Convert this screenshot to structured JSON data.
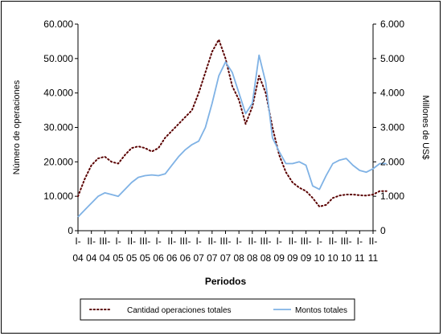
{
  "chart_data": {
    "type": "line",
    "xlabel": "Periodos",
    "ylabel_left": "Número de operaciones",
    "ylabel_right": "Millones de US$",
    "ylim_left": [
      0,
      60000
    ],
    "ylim_right": [
      0,
      6000
    ],
    "yticks_left": [
      "0",
      "10.000",
      "20.000",
      "30.000",
      "40.000",
      "50.000",
      "60.000"
    ],
    "yticks_right": [
      "0",
      "1.000",
      "2.000",
      "3.000",
      "4.000",
      "5.000",
      "6.000"
    ],
    "x_ticks": [
      {
        "top": "I-",
        "bottom": "04"
      },
      {
        "top": "II-",
        "bottom": "04"
      },
      {
        "top": "III-",
        "bottom": "04"
      },
      {
        "top": "I-",
        "bottom": "05"
      },
      {
        "top": "II-",
        "bottom": "05"
      },
      {
        "top": "III-",
        "bottom": "05"
      },
      {
        "top": "I-",
        "bottom": "06"
      },
      {
        "top": "II-",
        "bottom": "06"
      },
      {
        "top": "III-",
        "bottom": "06"
      },
      {
        "top": "I-",
        "bottom": "07"
      },
      {
        "top": "II-",
        "bottom": "07"
      },
      {
        "top": "III-",
        "bottom": "07"
      },
      {
        "top": "I-",
        "bottom": "08"
      },
      {
        "top": "II-",
        "bottom": "08"
      },
      {
        "top": "III-",
        "bottom": "08"
      },
      {
        "top": "I-",
        "bottom": "09"
      },
      {
        "top": "II-",
        "bottom": "09"
      },
      {
        "top": "III-",
        "bottom": "09"
      },
      {
        "top": "I-",
        "bottom": "10"
      },
      {
        "top": "II-",
        "bottom": "10"
      },
      {
        "top": "III-",
        "bottom": "10"
      },
      {
        "top": "I-",
        "bottom": "11"
      },
      {
        "top": "II-",
        "bottom": "11"
      }
    ],
    "x": [
      0,
      0.5,
      1,
      1.5,
      2,
      2.5,
      3,
      3.5,
      4,
      4.5,
      5,
      5.5,
      6,
      6.5,
      7,
      7.5,
      8,
      8.5,
      9,
      9.5,
      10,
      10.5,
      11,
      11.5,
      12,
      12.5,
      13,
      13.5,
      14,
      14.5,
      15,
      15.5,
      16,
      16.5,
      17,
      17.5,
      18,
      18.5,
      19,
      19.5,
      20,
      20.5,
      21,
      21.5,
      22,
      22.5,
      23
    ],
    "series": [
      {
        "name": "Cantidad operaciones totales",
        "axis": "left",
        "color": "#5a0000",
        "style": "dotted",
        "values": [
          10000,
          15000,
          19000,
          21000,
          21500,
          20000,
          19500,
          22000,
          24000,
          24500,
          24000,
          23000,
          24000,
          27000,
          29000,
          31000,
          33000,
          35000,
          40000,
          46000,
          52000,
          55500,
          50000,
          42000,
          38000,
          31000,
          36000,
          45000,
          40000,
          30000,
          22000,
          17000,
          14000,
          12500,
          11500,
          9500,
          7000,
          7500,
          9500,
          10200,
          10500,
          10500,
          10300,
          10200,
          10500,
          11500,
          11500
        ]
      },
      {
        "name": "Montos totales",
        "axis": "right",
        "color": "#7fb2e5",
        "style": "solid",
        "values": [
          400,
          600,
          800,
          1000,
          1100,
          1050,
          1000,
          1200,
          1400,
          1550,
          1600,
          1620,
          1600,
          1650,
          1900,
          2150,
          2350,
          2500,
          2600,
          3000,
          3700,
          4500,
          4900,
          4600,
          4000,
          3400,
          3700,
          5100,
          4300,
          2700,
          2300,
          1950,
          1950,
          2000,
          1900,
          1300,
          1200,
          1600,
          1950,
          2050,
          2100,
          1900,
          1750,
          1700,
          1800,
          1950,
          1950
        ]
      }
    ],
    "legend": {
      "position": "bottom"
    }
  }
}
